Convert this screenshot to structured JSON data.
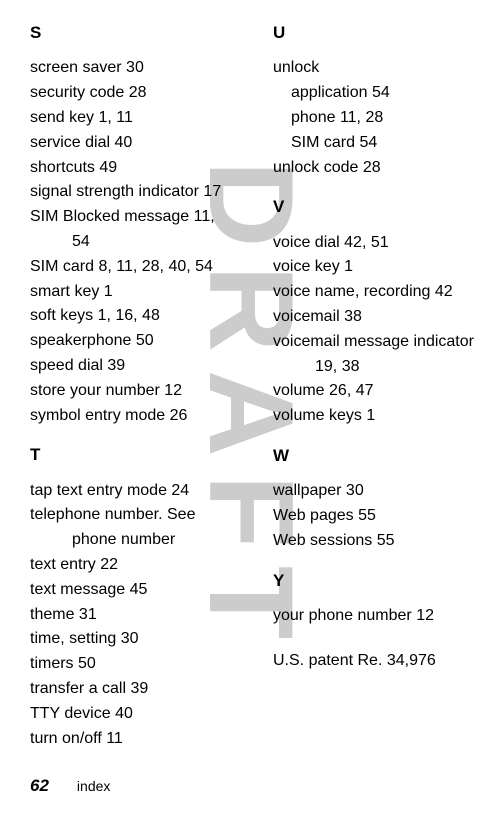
{
  "watermark": "DRAFT",
  "left": {
    "S": {
      "letter": "S",
      "entries": [
        "screen saver  30",
        "security code  28",
        "send key  1, 11",
        "service dial  40",
        "shortcuts  49",
        "signal strength indicator  17",
        "SIM Blocked message  11,",
        "SIM card  8, 11, 28, 40, 54",
        "smart key  1",
        "soft keys  1, 16, 48",
        "speakerphone  50",
        "speed dial  39",
        "store your number  12",
        "symbol entry mode  26"
      ],
      "cont": "54"
    },
    "T": {
      "letter": "T",
      "entries": [
        "tap text entry mode  24",
        "telephone number. See",
        "text entry  22",
        "text message  45",
        "theme  31",
        "time, setting  30",
        "timers  50",
        "transfer a call  39",
        "TTY device  40",
        "turn on/off  11"
      ],
      "cont": "phone number"
    }
  },
  "right": {
    "U": {
      "letter": "U",
      "entries": [
        "unlock",
        "unlock code  28"
      ],
      "subs": [
        "application  54",
        "phone  11, 28",
        "SIM card  54"
      ]
    },
    "V": {
      "letter": "V",
      "entries": [
        "voice dial  42, 51",
        "voice key  1",
        "voice name, recording  42",
        "voicemail  38",
        "voicemail message indicator",
        "volume  26, 47",
        "volume keys  1"
      ],
      "cont": "19, 38"
    },
    "W": {
      "letter": "W",
      "entries": [
        "wallpaper  30",
        "Web pages  55",
        "Web sessions  55"
      ]
    },
    "Y": {
      "letter": "Y",
      "entries": [
        "your phone number  12"
      ]
    },
    "patent": "U.S. patent Re. 34,976"
  },
  "footer": {
    "page": "62",
    "label": "index"
  }
}
